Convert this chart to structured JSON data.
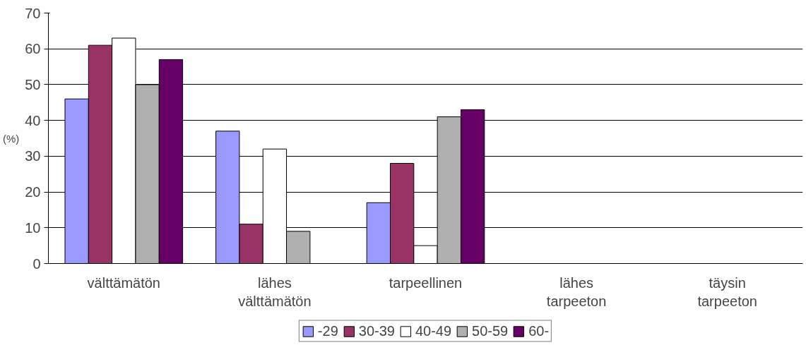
{
  "chart_data": {
    "type": "bar",
    "ylabel": "(%)",
    "categories": [
      "välttämätön",
      "lähes välttämätön",
      "tarpeellinen",
      "lähes tarpeeton",
      "täysin tarpeeton"
    ],
    "series": [
      {
        "name": "-29",
        "color": "#9999ff",
        "values": [
          46,
          37,
          17,
          null,
          null
        ]
      },
      {
        "name": "30-39",
        "color": "#993366",
        "values": [
          61,
          11,
          28,
          null,
          null
        ]
      },
      {
        "name": "40-49",
        "color": "#ffffff",
        "values": [
          63,
          32,
          5,
          null,
          null
        ]
      },
      {
        "name": "50-59",
        "color": "#b0b0b0",
        "values": [
          50,
          9,
          41,
          null,
          null
        ]
      },
      {
        "name": "60-",
        "color": "#660066",
        "values": [
          57,
          null,
          43,
          null,
          null
        ]
      }
    ],
    "ylim": [
      0,
      70
    ],
    "yticks": [
      0,
      10,
      20,
      30,
      40,
      50,
      60,
      70
    ],
    "grid": "y",
    "legend": "bottom"
  }
}
